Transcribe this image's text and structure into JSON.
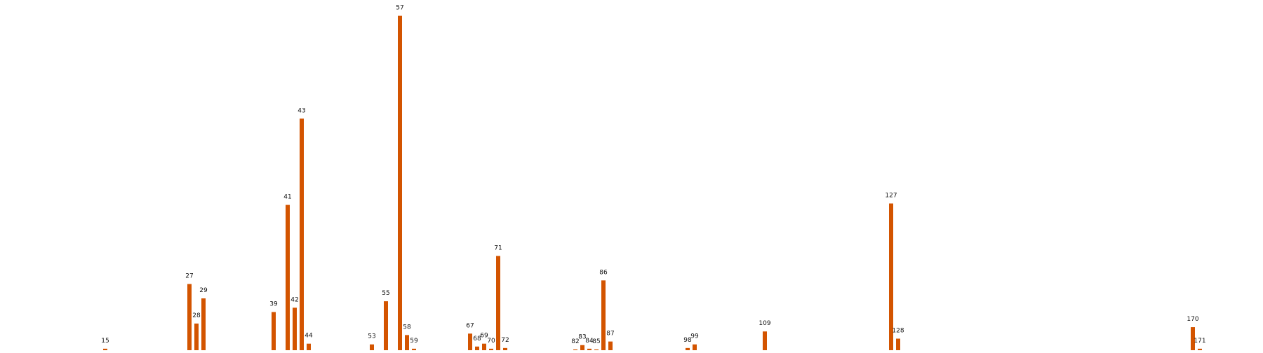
{
  "chart_data": {
    "type": "bar",
    "title": "",
    "xlabel": "",
    "ylabel": "",
    "bar_color": "#D35400",
    "x_range": [
      0,
      180
    ],
    "ylim": [
      0,
      49
    ],
    "axes_visible": false,
    "grid": false,
    "data_labels": "category number above each bar",
    "bars": [
      {
        "label": "15",
        "x": 15,
        "value": 0.5
      },
      {
        "label": "27",
        "x": 27,
        "value": 9.5
      },
      {
        "label": "28",
        "x": 28,
        "value": 4.0
      },
      {
        "label": "29",
        "x": 29,
        "value": 7.5
      },
      {
        "label": "39",
        "x": 39,
        "value": 5.6
      },
      {
        "label": "41",
        "x": 41,
        "value": 20.5
      },
      {
        "label": "42",
        "x": 42,
        "value": 6.2
      },
      {
        "label": "43",
        "x": 43,
        "value": 32.5
      },
      {
        "label": "44",
        "x": 44,
        "value": 1.2
      },
      {
        "label": "53",
        "x": 53,
        "value": 1.1
      },
      {
        "label": "55",
        "x": 55,
        "value": 7.1
      },
      {
        "label": "57",
        "x": 57,
        "value": 46.8
      },
      {
        "label": "58",
        "x": 58,
        "value": 2.4
      },
      {
        "label": "59",
        "x": 59,
        "value": 0.5
      },
      {
        "label": "67",
        "x": 67,
        "value": 2.6
      },
      {
        "label": "68",
        "x": 68,
        "value": 0.8
      },
      {
        "label": "69",
        "x": 69,
        "value": 1.2
      },
      {
        "label": "70",
        "x": 70,
        "value": 0.5
      },
      {
        "label": "71",
        "x": 71,
        "value": 13.4
      },
      {
        "label": "72",
        "x": 72,
        "value": 0.6
      },
      {
        "label": "82",
        "x": 82,
        "value": 0.4
      },
      {
        "label": "83",
        "x": 83,
        "value": 1.0
      },
      {
        "label": "84",
        "x": 84,
        "value": 0.5
      },
      {
        "label": "85",
        "x": 85,
        "value": 0.4
      },
      {
        "label": "86",
        "x": 86,
        "value": 10.0
      },
      {
        "label": "87",
        "x": 87,
        "value": 1.5
      },
      {
        "label": "98",
        "x": 98,
        "value": 0.6
      },
      {
        "label": "99",
        "x": 99,
        "value": 1.1
      },
      {
        "label": "109",
        "x": 109,
        "value": 2.9
      },
      {
        "label": "127",
        "x": 127,
        "value": 20.7
      },
      {
        "label": "128",
        "x": 128,
        "value": 1.9
      },
      {
        "label": "170",
        "x": 170,
        "value": 3.5
      },
      {
        "label": "171",
        "x": 171,
        "value": 0.5
      }
    ]
  }
}
